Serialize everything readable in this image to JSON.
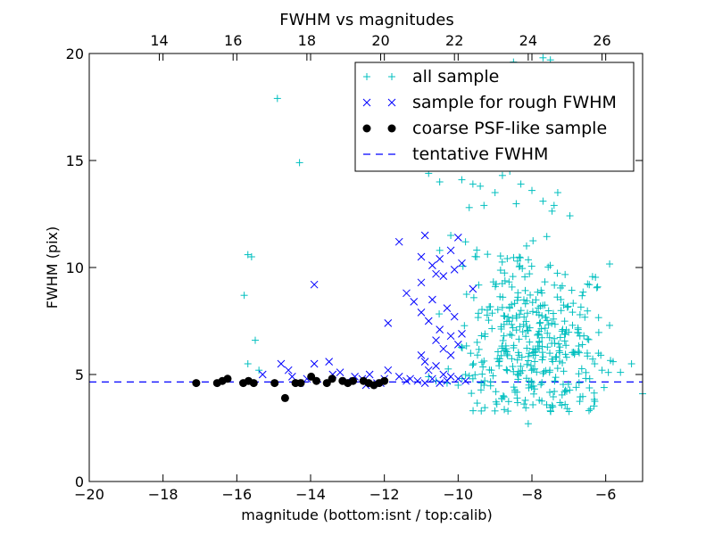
{
  "chart_data": {
    "type": "scatter",
    "title": "FWHM vs magnitudes",
    "xlabel": "magnitude (bottom:isnt / top:calib)",
    "ylabel": "FWHM (pix)",
    "xlim": [
      -20,
      -5
    ],
    "ylim": [
      0,
      20
    ],
    "x_ticks": [
      "−20",
      "−18",
      "−16",
      "−14",
      "−12",
      "−10",
      "−8",
      "−6"
    ],
    "x_tick_values": [
      -20,
      -18,
      -16,
      -14,
      -12,
      -10,
      -8,
      -6
    ],
    "y_ticks": [
      "0",
      "5",
      "10",
      "15",
      "20"
    ],
    "y_tick_values": [
      0,
      5,
      10,
      15,
      20
    ],
    "top_axis": {
      "ticks": [
        "14",
        "16",
        "18",
        "20",
        "22",
        "24",
        "26"
      ],
      "offset": 32.1
    },
    "grid": false,
    "legend_position": "top-right",
    "colors": {
      "all": "#00bfbf",
      "rough": "#0000ff",
      "coarse": "#000000",
      "tentative": "#0000ff"
    },
    "series": [
      {
        "name": "all sample",
        "marker": "plus",
        "color": "#00bfbf",
        "points": [
          [
            -15.7,
            10.6
          ],
          [
            -15.6,
            10.5
          ],
          [
            -15.8,
            8.7
          ],
          [
            -15.5,
            6.6
          ],
          [
            -15.7,
            5.5
          ],
          [
            -15.4,
            5.2
          ],
          [
            -14.9,
            17.9
          ],
          [
            -14.3,
            14.9
          ],
          [
            -11.0,
            14.8
          ],
          [
            -10.8,
            14.4
          ],
          [
            -10.5,
            14.0
          ],
          [
            -9.9,
            14.1
          ],
          [
            -9.6,
            13.9
          ],
          [
            -9.4,
            13.8
          ],
          [
            -9.7,
            12.8
          ],
          [
            -9.3,
            12.9
          ],
          [
            -9.0,
            13.5
          ],
          [
            -8.8,
            14.3
          ],
          [
            -8.6,
            14.5
          ],
          [
            -8.3,
            13.9
          ],
          [
            -8.0,
            13.6
          ],
          [
            -7.7,
            13.1
          ],
          [
            -7.4,
            12.9
          ],
          [
            -7.3,
            13.5
          ],
          [
            -7.7,
            19.8
          ],
          [
            -7.5,
            19.7
          ],
          [
            -8.5,
            19.6
          ],
          [
            -10.5,
            10.8
          ],
          [
            -10.2,
            11.5
          ],
          [
            -9.8,
            11.2
          ],
          [
            -9.5,
            10.5
          ],
          [
            -6.9,
            7.3
          ],
          [
            -6.7,
            6.8
          ],
          [
            -6.5,
            6.0
          ],
          [
            -6.3,
            5.5
          ],
          [
            -6.1,
            5.2
          ],
          [
            -5.8,
            5.6
          ],
          [
            -5.6,
            5.1
          ],
          [
            -5.3,
            5.5
          ],
          [
            -5.0,
            4.1
          ],
          [
            -6.8,
            4.4
          ],
          [
            -7.1,
            3.6
          ],
          [
            -7.5,
            3.3
          ],
          [
            -8.1,
            2.7
          ],
          [
            -8.4,
            3.9
          ],
          [
            -7.8,
            3.8
          ],
          [
            -10.8,
            4.9
          ],
          [
            -10.6,
            4.7
          ],
          [
            -10.3,
            4.6
          ],
          [
            -10.0,
            4.5
          ],
          [
            -9.8,
            5.0
          ],
          [
            -9.6,
            4.8
          ],
          [
            -9.3,
            4.5
          ],
          [
            -9.1,
            5.2
          ],
          [
            -8.9,
            5.6
          ],
          [
            -8.7,
            6.2
          ]
        ],
        "cluster": {
          "center": [
            -8.0,
            6.8
          ],
          "spread": [
            0.9,
            2.0
          ],
          "count": 380,
          "seed": 7
        }
      },
      {
        "name": "sample for rough FWHM",
        "marker": "x",
        "color": "#0000ff",
        "points": [
          [
            -15.3,
            5.0
          ],
          [
            -14.8,
            5.5
          ],
          [
            -14.6,
            5.2
          ],
          [
            -14.5,
            4.9
          ],
          [
            -14.3,
            4.6
          ],
          [
            -14.1,
            4.8
          ],
          [
            -13.9,
            5.5
          ],
          [
            -13.9,
            9.2
          ],
          [
            -13.5,
            5.6
          ],
          [
            -13.4,
            5.0
          ],
          [
            -13.2,
            5.1
          ],
          [
            -13.0,
            4.7
          ],
          [
            -12.8,
            4.9
          ],
          [
            -12.6,
            4.8
          ],
          [
            -12.4,
            5.0
          ],
          [
            -12.2,
            4.6
          ],
          [
            -12.0,
            4.8
          ],
          [
            -11.9,
            5.2
          ],
          [
            -11.9,
            7.4
          ],
          [
            -11.6,
            11.2
          ],
          [
            -11.4,
            8.8
          ],
          [
            -11.2,
            8.4
          ],
          [
            -11.0,
            7.9
          ],
          [
            -11.0,
            9.3
          ],
          [
            -10.9,
            11.5
          ],
          [
            -11.0,
            10.5
          ],
          [
            -10.7,
            10.1
          ],
          [
            -10.5,
            10.4
          ],
          [
            -10.2,
            10.8
          ],
          [
            -10.0,
            11.4
          ],
          [
            -10.6,
            9.7
          ],
          [
            -10.4,
            9.6
          ],
          [
            -10.1,
            9.9
          ],
          [
            -9.9,
            10.2
          ],
          [
            -10.7,
            8.5
          ],
          [
            -10.3,
            8.1
          ],
          [
            -10.1,
            7.7
          ],
          [
            -10.8,
            7.5
          ],
          [
            -10.5,
            7.1
          ],
          [
            -10.2,
            6.8
          ],
          [
            -10.0,
            6.4
          ],
          [
            -10.6,
            6.6
          ],
          [
            -10.4,
            6.2
          ],
          [
            -10.2,
            5.9
          ],
          [
            -10.9,
            5.6
          ],
          [
            -11.0,
            5.9
          ],
          [
            -10.8,
            5.2
          ],
          [
            -10.6,
            5.4
          ],
          [
            -10.4,
            5.0
          ],
          [
            -10.2,
            4.9
          ],
          [
            -10.0,
            4.8
          ],
          [
            -9.8,
            4.7
          ],
          [
            -11.3,
            4.8
          ],
          [
            -11.1,
            4.7
          ],
          [
            -10.9,
            4.6
          ],
          [
            -10.7,
            4.8
          ],
          [
            -10.5,
            4.6
          ],
          [
            -10.3,
            4.7
          ],
          [
            -9.9,
            6.9
          ],
          [
            -9.6,
            9.0
          ],
          [
            -11.6,
            4.9
          ],
          [
            -11.4,
            4.7
          ],
          [
            -12.1,
            4.6
          ],
          [
            -12.5,
            4.5
          ]
        ]
      },
      {
        "name": "coarse PSF-like sample",
        "marker": "circle",
        "color": "#000000",
        "points": [
          [
            -17.1,
            4.6
          ],
          [
            -16.7,
            4.6
          ],
          [
            -16.6,
            4.7
          ],
          [
            -16.5,
            4.8
          ],
          [
            -16.2,
            4.6
          ],
          [
            -16.1,
            4.7
          ],
          [
            -16.0,
            4.6
          ],
          [
            -15.6,
            4.6
          ],
          [
            -15.4,
            3.9
          ],
          [
            -15.2,
            4.6
          ],
          [
            -15.1,
            4.6
          ],
          [
            -14.9,
            4.9
          ],
          [
            -14.8,
            4.7
          ],
          [
            -14.6,
            4.6
          ],
          [
            -14.5,
            4.8
          ],
          [
            -14.3,
            4.7
          ],
          [
            -14.2,
            4.6
          ],
          [
            -14.1,
            4.7
          ],
          [
            -13.9,
            4.7
          ],
          [
            -13.8,
            4.6
          ],
          [
            -13.7,
            4.5
          ],
          [
            -13.6,
            4.6
          ],
          [
            -13.5,
            4.7
          ]
        ],
        "x_scale_note": ""
      }
    ],
    "tentative_fwhm": {
      "name": "tentative FWHM",
      "value": 4.65,
      "style": "dashed",
      "color": "#0000ff"
    }
  }
}
